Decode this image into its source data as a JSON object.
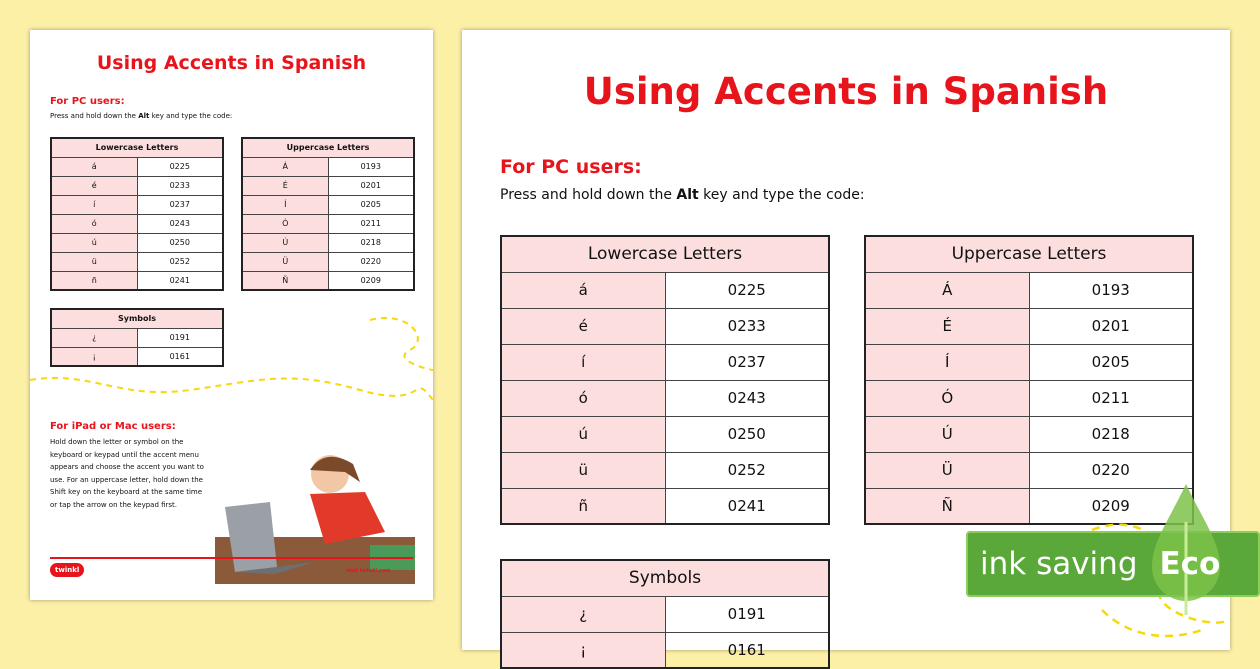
{
  "title": "Using Accents in Spanish",
  "pc_heading": "For PC users:",
  "pc_instr_pre": "Press and hold down the ",
  "pc_instr_key": "Alt",
  "pc_instr_post": " key and type the code:",
  "lowercase": {
    "header": "Lowercase Letters",
    "rows": [
      [
        "á",
        "0225"
      ],
      [
        "é",
        "0233"
      ],
      [
        "í",
        "0237"
      ],
      [
        "ó",
        "0243"
      ],
      [
        "ú",
        "0250"
      ],
      [
        "ü",
        "0252"
      ],
      [
        "ñ",
        "0241"
      ]
    ]
  },
  "uppercase": {
    "header": "Uppercase Letters",
    "rows": [
      [
        "Á",
        "0193"
      ],
      [
        "É",
        "0201"
      ],
      [
        "Í",
        "0205"
      ],
      [
        "Ó",
        "0211"
      ],
      [
        "Ú",
        "0218"
      ],
      [
        "Ü",
        "0220"
      ],
      [
        "Ñ",
        "0209"
      ]
    ]
  },
  "symbols": {
    "header": "Symbols",
    "rows": [
      [
        "¿",
        "0191"
      ],
      [
        "¡",
        "0161"
      ]
    ]
  },
  "mac_heading": "For iPad or Mac users:",
  "mac_instr": "Hold down the letter or symbol on the keyboard or keypad until the accent menu appears and choose the accent you want to use. For an uppercase letter, hold down the Shift key on the keyboard at the same time or tap the arrow on the keypad first.",
  "footer": {
    "logo": "twinkl",
    "link": "visit twinkl.com"
  },
  "badge": {
    "text": "ink saving",
    "eco": "Eco"
  },
  "colors": {
    "accent": "#e8141b",
    "header_fill": "#fddede",
    "background": "#fcefa6",
    "eco_green": "#5aa83a"
  }
}
